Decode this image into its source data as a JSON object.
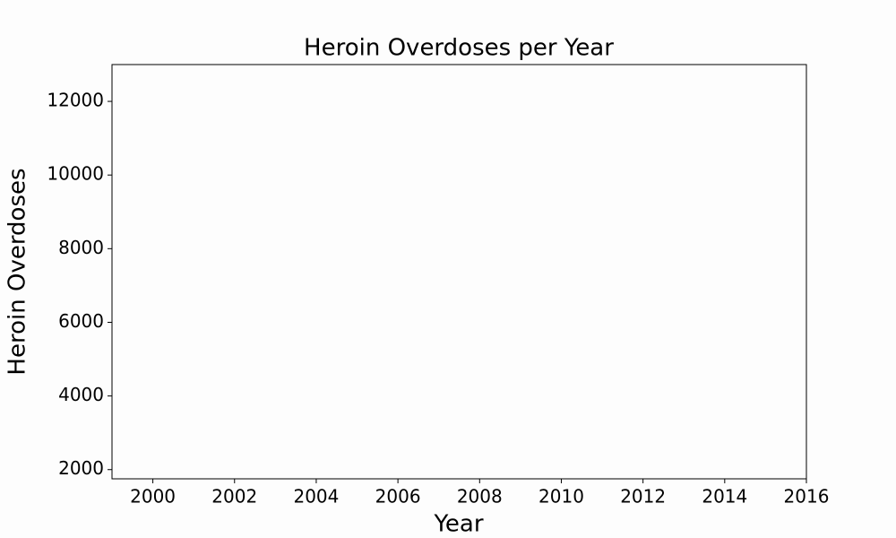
{
  "chart_data": {
    "type": "line",
    "title": "Heroin Overdoses per Year",
    "xlabel": "Year",
    "ylabel": "Heroin Overdoses",
    "xlim": [
      1999,
      2016
    ],
    "xticks": [
      2000,
      2002,
      2004,
      2006,
      2008,
      2010,
      2012,
      2014,
      2016
    ],
    "ylim": [
      1750,
      13000
    ],
    "yticks": [
      2000,
      4000,
      6000,
      8000,
      10000,
      12000
    ],
    "grid": false
  }
}
